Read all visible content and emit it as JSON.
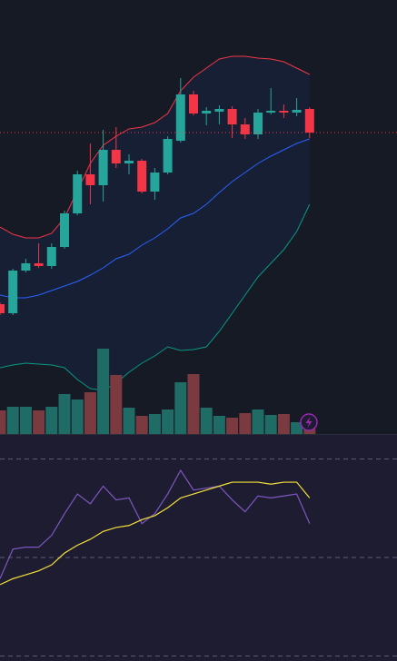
{
  "chart_data": [
    {
      "type": "candlestick",
      "open": [
        143,
        133,
        180,
        188,
        185,
        206,
        243,
        286,
        274,
        313,
        298,
        301,
        267,
        288,
        323,
        374,
        353,
        355,
        358,
        341,
        330,
        354,
        356,
        354,
        358
      ],
      "close": [
        133,
        180,
        188,
        185,
        206,
        243,
        286,
        274,
        313,
        298,
        301,
        267,
        288,
        325,
        374,
        353,
        356,
        358,
        341,
        330,
        354,
        356,
        354,
        357,
        332
      ],
      "high": [
        145,
        182,
        193,
        210,
        210,
        246,
        290,
        320,
        335,
        338,
        308,
        303,
        293,
        328,
        392,
        378,
        360,
        362,
        361,
        348,
        358,
        381,
        363,
        370,
        360
      ],
      "low": [
        131,
        131,
        178,
        183,
        182,
        204,
        241,
        253,
        256,
        293,
        286,
        265,
        258,
        286,
        321,
        351,
        340,
        341,
        326,
        325,
        325,
        352,
        348,
        350,
        326
      ],
      "volume": [
        26,
        30,
        30,
        26,
        30,
        44,
        38,
        46,
        94,
        65,
        29,
        20,
        22,
        27,
        57,
        66,
        29,
        20,
        18,
        23,
        27,
        21,
        22,
        13,
        11
      ],
      "up_color": "#26a69a",
      "down_color": "#f23645",
      "volume_up_color": "#1f6b66",
      "volume_down_color": "#7a3a3f",
      "ylim": [
        0,
        478
      ],
      "volume_ylim": [
        0,
        478
      ],
      "series": [
        {
          "color": "#f23645",
          "values": [
            228,
            220,
            216,
            216,
            221,
            238,
            268,
            298,
            318,
            328,
            336,
            338,
            343,
            353,
            378,
            393,
            403,
            413,
            416,
            416,
            414,
            413,
            410,
            403,
            396
          ]
        },
        {
          "color": "#2962ff",
          "values": [
            153,
            150,
            150,
            153,
            158,
            163,
            168,
            175,
            183,
            193,
            198,
            208,
            216,
            226,
            238,
            243,
            253,
            266,
            278,
            288,
            298,
            306,
            313,
            320,
            325
          ]
        },
        {
          "color": "#089981",
          "values": [
            73,
            76,
            78,
            77,
            76,
            73,
            60,
            50,
            48,
            56,
            68,
            78,
            86,
            96,
            92,
            93,
            96,
            113,
            133,
            153,
            173,
            188,
            203,
            223,
            253
          ]
        }
      ]
    },
    {
      "type": "line",
      "ylim": [
        0,
        100
      ],
      "yticks": [
        0,
        50,
        100
      ],
      "grid": true,
      "series": [
        {
          "color": "#7e57c2",
          "values": [
            39,
            54,
            55,
            55,
            61,
            72,
            82,
            77,
            86,
            79,
            80,
            67,
            72,
            82,
            94,
            84,
            85,
            86,
            79,
            73,
            81,
            80,
            81,
            82,
            67
          ]
        },
        {
          "color": "#f5e13b",
          "values": [
            36,
            39,
            41,
            43,
            46,
            52,
            56,
            59,
            63,
            65,
            66,
            69,
            71,
            75,
            80,
            82,
            84,
            86,
            88,
            88,
            88,
            87,
            88,
            88,
            80
          ]
        }
      ]
    }
  ]
}
